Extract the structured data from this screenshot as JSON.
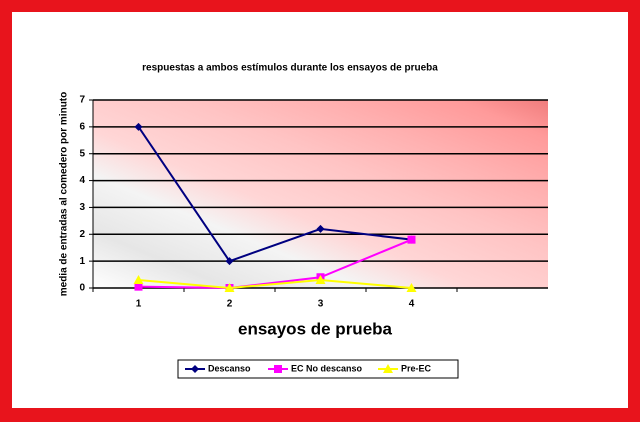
{
  "chart_data": {
    "type": "line",
    "title": "respuestas a ambos estímulos durante los ensayos de prueba",
    "x_label": "ensayos de prueba",
    "y_label": "media de entradas al comedero por minuto",
    "categories": [
      "1",
      "2",
      "3",
      "4",
      null
    ],
    "series": [
      {
        "name": "Descanso",
        "color": "#000080",
        "marker": "diamond",
        "values": [
          6,
          1,
          2.2,
          1.8,
          null
        ]
      },
      {
        "name": "EC No descanso",
        "color": "#ff00ff",
        "marker": "square",
        "values": [
          0.05,
          0,
          0.4,
          1.8,
          null
        ]
      },
      {
        "name": "Pre-EC",
        "color": "#ffff00",
        "marker": "triangle",
        "values": [
          0.3,
          0,
          0.3,
          0,
          null
        ]
      }
    ],
    "ylim": [
      0,
      7
    ],
    "yticks": [
      0,
      1,
      2,
      3,
      4,
      5,
      6,
      7
    ],
    "grid": true,
    "legend": "bottom"
  }
}
